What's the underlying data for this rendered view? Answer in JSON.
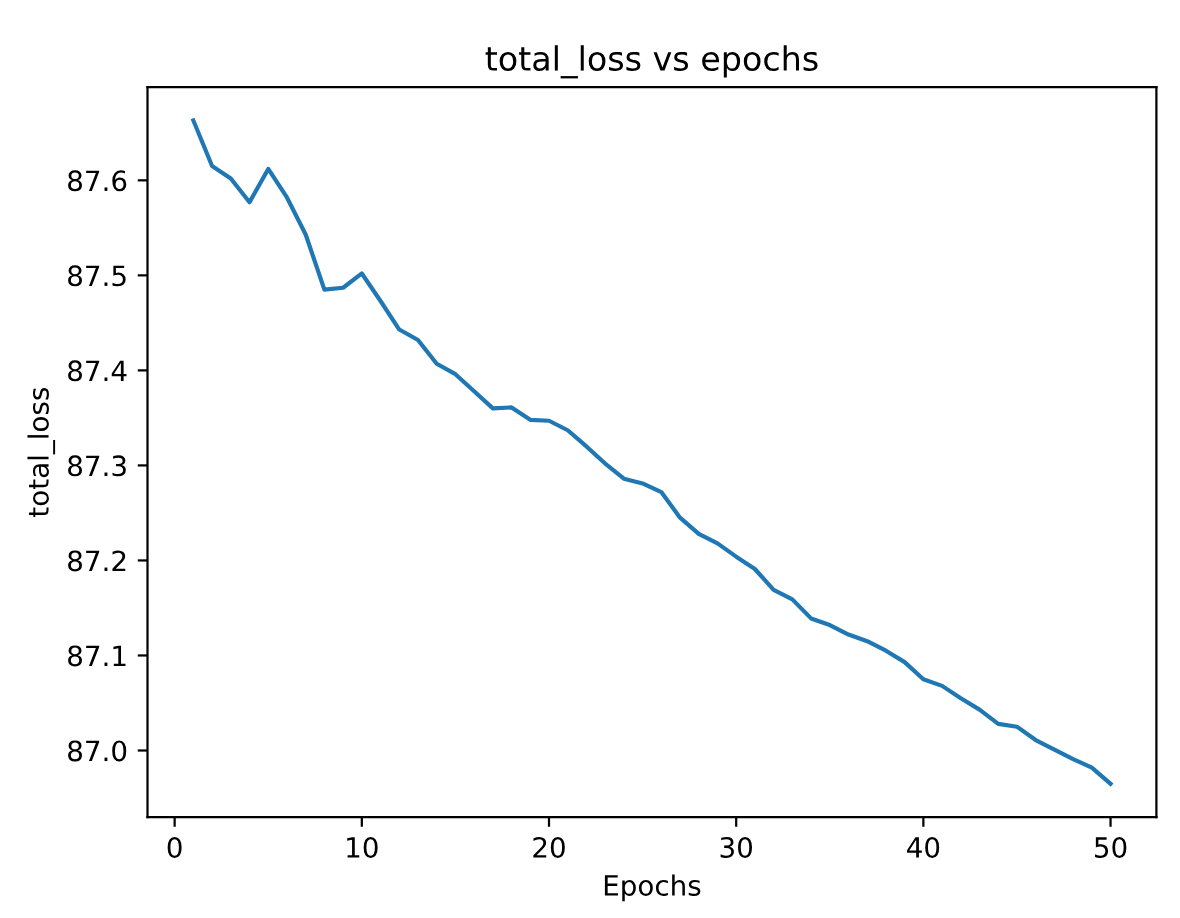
{
  "chart_data": {
    "type": "line",
    "title": "total_loss vs epochs",
    "xlabel": "Epochs",
    "ylabel": "total_loss",
    "x": [
      1,
      2,
      3,
      4,
      5,
      6,
      7,
      8,
      9,
      10,
      11,
      12,
      13,
      14,
      15,
      16,
      17,
      18,
      19,
      20,
      21,
      22,
      23,
      24,
      25,
      26,
      27,
      28,
      29,
      30,
      31,
      32,
      33,
      34,
      35,
      36,
      37,
      38,
      39,
      40,
      41,
      42,
      43,
      44,
      45,
      46,
      47,
      48,
      49,
      50
    ],
    "series": [
      {
        "color": "#1f77b4",
        "values": [
          87.663,
          87.615,
          87.602,
          87.577,
          87.612,
          87.582,
          87.543,
          87.485,
          87.487,
          87.502,
          87.473,
          87.443,
          87.432,
          87.407,
          87.396,
          87.378,
          87.36,
          87.361,
          87.348,
          87.347,
          87.337,
          87.32,
          87.302,
          87.286,
          87.281,
          87.272,
          87.245,
          87.228,
          87.218,
          87.204,
          87.191,
          87.169,
          87.159,
          87.139,
          87.132,
          87.122,
          87.115,
          87.105,
          87.093,
          87.075,
          87.068,
          87.055,
          87.043,
          87.028,
          87.025,
          87.011,
          87.001,
          86.991,
          86.982,
          86.965
        ]
      }
    ],
    "xlim": [
      -1.45,
      52.45
    ],
    "ylim": [
      86.93,
      87.698
    ],
    "xticks": [
      0,
      10,
      20,
      30,
      40,
      50
    ],
    "yticks": [
      {
        "value": 87.0,
        "label": "87.0"
      },
      {
        "value": 87.1,
        "label": "87.1"
      },
      {
        "value": 87.2,
        "label": "87.2"
      },
      {
        "value": 87.3,
        "label": "87.3"
      },
      {
        "value": 87.4,
        "label": "87.4"
      },
      {
        "value": 87.5,
        "label": "87.5"
      },
      {
        "value": 87.6,
        "label": "87.6"
      }
    ]
  }
}
